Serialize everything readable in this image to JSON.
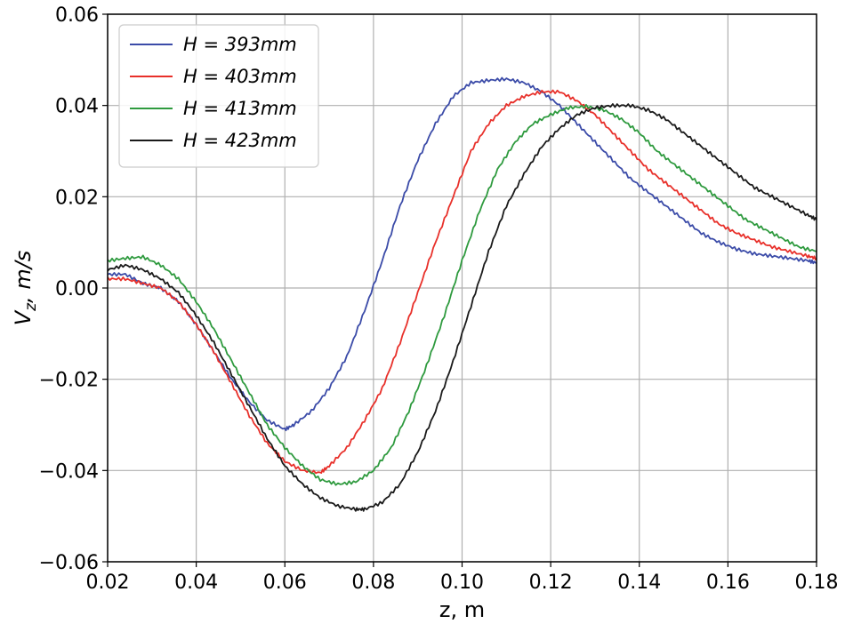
{
  "chart_data": {
    "type": "line",
    "title": "",
    "xlabel": "z, m",
    "ylabel_main": "V",
    "ylabel_sub": "z",
    "ylabel_rest": ", m/s",
    "xlim": [
      0.02,
      0.18
    ],
    "ylim": [
      -0.06,
      0.06
    ],
    "grid": true,
    "legend_position": "top-left",
    "xticks": [
      0.02,
      0.04,
      0.06,
      0.08,
      0.1,
      0.12,
      0.14,
      0.16,
      0.18
    ],
    "xtick_labels": [
      "0.02",
      "0.04",
      "0.06",
      "0.08",
      "0.10",
      "0.12",
      "0.14",
      "0.16",
      "0.18"
    ],
    "yticks": [
      -0.06,
      -0.04,
      -0.02,
      0.0,
      0.02,
      0.04,
      0.06
    ],
    "ytick_labels": [
      "−0.06",
      "−0.04",
      "−0.02",
      "0.00",
      "0.02",
      "0.04",
      "0.06"
    ],
    "series": [
      {
        "name": "H = 393mm",
        "color": "#3b4ba8",
        "x": [
          0.02,
          0.024,
          0.028,
          0.032,
          0.036,
          0.04,
          0.044,
          0.048,
          0.052,
          0.056,
          0.06,
          0.062,
          0.066,
          0.07,
          0.074,
          0.078,
          0.082,
          0.086,
          0.09,
          0.094,
          0.098,
          0.102,
          0.106,
          0.11,
          0.114,
          0.118,
          0.122,
          0.126,
          0.13,
          0.134,
          0.138,
          0.142,
          0.146,
          0.15,
          0.154,
          0.158,
          0.162,
          0.166,
          0.17,
          0.174,
          0.178,
          0.18
        ],
        "y": [
          0.003,
          0.003,
          0.001,
          0.0,
          -0.003,
          -0.008,
          -0.014,
          -0.02,
          -0.025,
          -0.029,
          -0.031,
          -0.03,
          -0.027,
          -0.022,
          -0.015,
          -0.005,
          0.006,
          0.018,
          0.028,
          0.036,
          0.042,
          0.045,
          0.0455,
          0.0458,
          0.045,
          0.043,
          0.04,
          0.036,
          0.032,
          0.028,
          0.024,
          0.021,
          0.018,
          0.015,
          0.012,
          0.01,
          0.0085,
          0.0075,
          0.007,
          0.0065,
          0.006,
          0.0055
        ]
      },
      {
        "name": "H = 403mm",
        "color": "#e8302a",
        "x": [
          0.02,
          0.024,
          0.028,
          0.032,
          0.036,
          0.04,
          0.044,
          0.048,
          0.052,
          0.056,
          0.06,
          0.064,
          0.068,
          0.07,
          0.074,
          0.078,
          0.082,
          0.086,
          0.09,
          0.094,
          0.098,
          0.102,
          0.106,
          0.11,
          0.114,
          0.118,
          0.122,
          0.126,
          0.13,
          0.134,
          0.138,
          0.142,
          0.146,
          0.15,
          0.154,
          0.158,
          0.162,
          0.166,
          0.17,
          0.174,
          0.178,
          0.18
        ],
        "y": [
          0.002,
          0.002,
          0.001,
          0.0,
          -0.003,
          -0.008,
          -0.014,
          -0.021,
          -0.028,
          -0.034,
          -0.038,
          -0.04,
          -0.0405,
          -0.039,
          -0.035,
          -0.029,
          -0.022,
          -0.012,
          -0.001,
          0.01,
          0.02,
          0.03,
          0.036,
          0.04,
          0.042,
          0.043,
          0.043,
          0.041,
          0.038,
          0.034,
          0.03,
          0.026,
          0.023,
          0.02,
          0.017,
          0.014,
          0.012,
          0.0105,
          0.009,
          0.008,
          0.007,
          0.0065
        ]
      },
      {
        "name": "H = 413mm",
        "color": "#2e9a3e",
        "x": [
          0.02,
          0.024,
          0.028,
          0.032,
          0.036,
          0.04,
          0.044,
          0.048,
          0.052,
          0.056,
          0.06,
          0.064,
          0.068,
          0.072,
          0.076,
          0.08,
          0.084,
          0.088,
          0.092,
          0.096,
          0.1,
          0.104,
          0.108,
          0.112,
          0.116,
          0.12,
          0.124,
          0.128,
          0.132,
          0.136,
          0.14,
          0.144,
          0.148,
          0.152,
          0.156,
          0.16,
          0.164,
          0.168,
          0.172,
          0.176,
          0.18
        ],
        "y": [
          0.006,
          0.0065,
          0.0068,
          0.005,
          0.002,
          -0.003,
          -0.009,
          -0.016,
          -0.023,
          -0.03,
          -0.035,
          -0.039,
          -0.042,
          -0.043,
          -0.0425,
          -0.04,
          -0.035,
          -0.027,
          -0.017,
          -0.006,
          0.006,
          0.017,
          0.026,
          0.032,
          0.036,
          0.038,
          0.0395,
          0.0398,
          0.039,
          0.037,
          0.034,
          0.03,
          0.027,
          0.024,
          0.021,
          0.018,
          0.015,
          0.013,
          0.011,
          0.009,
          0.008
        ]
      },
      {
        "name": "H = 423mm",
        "color": "#1a1a1a",
        "x": [
          0.02,
          0.024,
          0.028,
          0.032,
          0.036,
          0.04,
          0.044,
          0.048,
          0.052,
          0.056,
          0.06,
          0.064,
          0.068,
          0.072,
          0.076,
          0.078,
          0.082,
          0.086,
          0.09,
          0.094,
          0.098,
          0.102,
          0.106,
          0.11,
          0.114,
          0.118,
          0.122,
          0.126,
          0.13,
          0.134,
          0.138,
          0.142,
          0.146,
          0.15,
          0.154,
          0.158,
          0.162,
          0.166,
          0.17,
          0.174,
          0.178,
          0.18
        ],
        "y": [
          0.004,
          0.005,
          0.004,
          0.002,
          -0.001,
          -0.006,
          -0.012,
          -0.019,
          -0.026,
          -0.033,
          -0.039,
          -0.043,
          -0.046,
          -0.0478,
          -0.0485,
          -0.0485,
          -0.047,
          -0.043,
          -0.036,
          -0.027,
          -0.016,
          -0.004,
          0.008,
          0.018,
          0.025,
          0.031,
          0.035,
          0.038,
          0.0395,
          0.04,
          0.04,
          0.039,
          0.037,
          0.034,
          0.031,
          0.028,
          0.025,
          0.022,
          0.02,
          0.018,
          0.016,
          0.015
        ]
      }
    ]
  }
}
